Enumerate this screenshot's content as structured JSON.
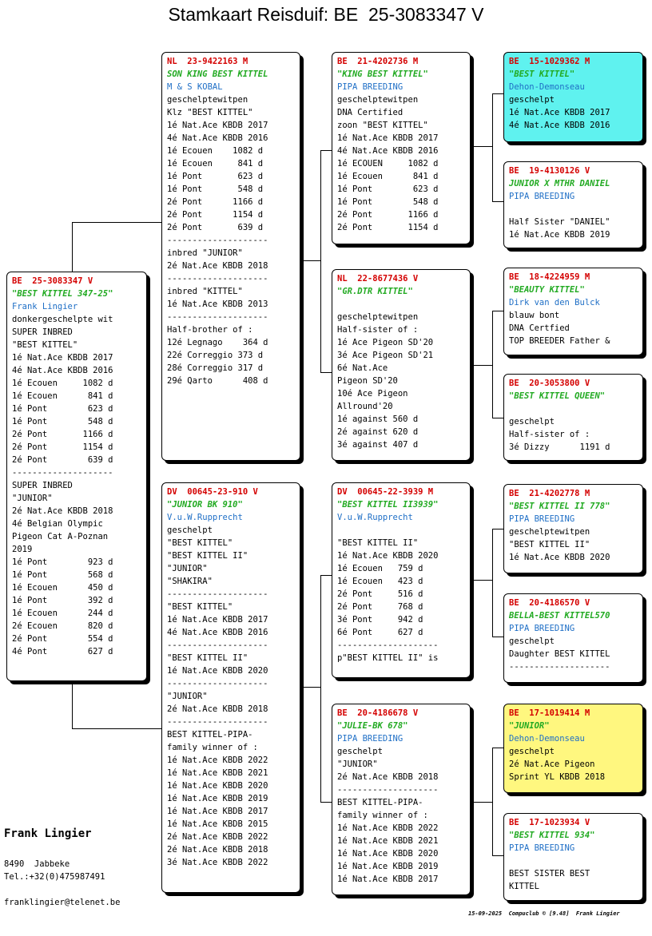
{
  "title": "Stamkaart Reisduif: BE  25-3083347 V",
  "colors": {
    "header": "#d40000",
    "name": "#22aa22",
    "breeder": "#1f6fc6",
    "highlight_cyan": "#5ff2ef",
    "highlight_yellow": "#fff77f"
  },
  "cards": {
    "subject": {
      "lines": [
        "BE  25-3083347 V",
        "\"BEST KITTEL 347-25\"",
        "Frank Lingier",
        "donkergeschelpte wit",
        "SUPER INBRED",
        "\"BEST KITTEL\"",
        "1é Nat.Ace KBDB 2017",
        "4é Nat.Ace KBDB 2016",
        "1é Ecouen     1082 d",
        "1é Ecouen      841 d",
        "1é Pont        623 d",
        "1é Pont        548 d",
        "2é Pont       1166 d",
        "2é Pont       1154 d",
        "2é Pont        639 d",
        "--------------------",
        "SUPER INBRED",
        "\"JUNIOR\"",
        "2é Nat.Ace KBDB 2018",
        "4é Belgian Olympic",
        "Pigeon Cat A-Poznan",
        "2019",
        "1é Pont        923 d",
        "1é Pont        568 d",
        "1é Ecouen      450 d",
        "1é Pont        392 d",
        "1é Ecouen      244 d",
        "2é Ecouen      820 d",
        "2é Pont        554 d",
        "4é Pont        627 d"
      ]
    },
    "sire": {
      "lines": [
        "NL  23-9422163 M",
        "SON KING BEST KITTEL",
        "M & S KOBAL",
        "geschelptewitpen",
        "Klz \"BEST KITTEL\"",
        "1é Nat.Ace KBDB 2017",
        "4é Nat.Ace KBDB 2016",
        "1é Ecouen    1082 d",
        "1é Ecouen     841 d",
        "1é Pont       623 d",
        "1é Pont       548 d",
        "2é Pont      1166 d",
        "2é Pont      1154 d",
        "2é Pont       639 d",
        "--------------------",
        "inbred \"JUNIOR\"",
        "2é Nat.Ace KBDB 2018",
        "--------------------",
        "inbred \"KITTEL\"",
        "1é Nat.Ace KBDB 2013",
        "--------------------",
        "Half-brother of :",
        "12é Legnago    364 d",
        "22é Correggio 373 d",
        "28é Correggio 317 d",
        "29é Qarto      408 d"
      ]
    },
    "dam": {
      "lines": [
        "DV  00645-23-910 V",
        "\"JUNIOR BK 910\"",
        "V.u.W.Rupprecht",
        "geschelpt",
        "\"BEST KITTEL\"",
        "\"BEST KITTEL II\"",
        "\"JUNIOR\"",
        "\"SHAKIRA\"",
        "--------------------",
        "\"BEST KITTEL\"",
        "1é Nat.Ace KBDB 2017",
        "4é Nat.Ace KBDB 2016",
        "--------------------",
        "\"BEST KITTEL II\"",
        "1é Nat.Ace KBDB 2020",
        "--------------------",
        "\"JUNIOR\"",
        "2é Nat.Ace KBDB 2018",
        "--------------------",
        "BEST KITTEL-PIPA-",
        "family winner of :",
        "1é Nat.Ace KBDB 2022",
        "1é Nat.Ace KBDB 2021",
        "1é Nat.Ace KBDB 2020",
        "1é Nat.Ace KBDB 2019",
        "1é Nat.Ace KBDB 2017",
        "1é Nat.Ace KBDB 2015",
        "2é Nat.Ace KBDB 2022",
        "2é Nat.Ace KBDB 2018",
        "3é Nat.Ace KBDB 2022"
      ]
    },
    "ss": {
      "lines": [
        "BE  21-4202736 M",
        "\"KING BEST KITTEL\"",
        "PIPA BREEDING",
        "geschelptewitpen",
        "DNA Certified",
        "zoon \"BEST KITTEL\"",
        "1é Nat.Ace KBDB 2017",
        "4é Nat.Ace KBDB 2016",
        "1é ECOUEN     1082 d",
        "1é Ecouen      841 d",
        "1é Pont        623 d",
        "1é Pont        548 d",
        "2é Pont       1166 d",
        "2é Pont       1154 d"
      ]
    },
    "sd": {
      "lines": [
        "NL  22-8677436 V",
        "\"GR.DTR KITTEL\"",
        "",
        "geschelptewitpen",
        "Half-sister of :",
        "1é Ace Pigeon SD'20",
        "3é Ace Pigeon SD'21",
        "6é Nat.Ace",
        "Pigeon SD'20",
        "10é Ace Pigeon",
        "Allround'20",
        "1é against 560 d",
        "2é against 620 d",
        "3é against 407 d"
      ]
    },
    "ds": {
      "lines": [
        "DV  00645-22-3939 M",
        "\"BEST KITTEL II3939\"",
        "V.u.W.Rupprecht",
        "",
        "\"BEST KITTEL II\"",
        "1é Nat.Ace KBDB 2020",
        "1é Ecouen   759 d",
        "1é Ecouen   423 d",
        "2é Pont     516 d",
        "2é Pont     768 d",
        "3é Pont     942 d",
        "6é Pont     627 d",
        "--------------------",
        "p\"BEST KITTEL II\" is"
      ]
    },
    "dd": {
      "lines": [
        "BE  20-4186678 V",
        "\"JULIE-BK 678\"",
        "PIPA BREEDING",
        "geschelpt",
        "\"JUNIOR\"",
        "2é Nat.Ace KBDB 2018",
        "--------------------",
        "BEST KITTEL-PIPA-",
        "family winner of :",
        "1é Nat.Ace KBDB 2022",
        "1é Nat.Ace KBDB 2021",
        "1é Nat.Ace KBDB 2020",
        "1é Nat.Ace KBDB 2019",
        "1é Nat.Ace KBDB 2017"
      ]
    },
    "sss": {
      "lines": [
        "BE  15-1029362 M",
        "\"BEST KITTEL\"",
        "Dehon-Demonseau",
        "geschelpt",
        "1é Nat.Ace KBDB 2017",
        "4é Nat.Ace KBDB 2016"
      ]
    },
    "ssd": {
      "lines": [
        "BE  19-4130126 V",
        "JUNIOR X MTHR DANIEL",
        "PIPA BREEDING",
        "",
        "Half Sister \"DANIEL\"",
        "1é Nat.Ace KBDB 2019"
      ]
    },
    "sds": {
      "lines": [
        "BE  18-4224959 M",
        "\"BEAUTY KITTEL\"",
        "Dirk van den Bulck",
        "blauw bont",
        "DNA Certfied",
        "TOP BREEDER Father &"
      ]
    },
    "sdd": {
      "lines": [
        "BE  20-3053800 V",
        "\"BEST KITTEL QUEEN\"",
        "",
        "geschelpt",
        "Half-sister of :",
        "3é Dizzy      1191 d"
      ]
    },
    "dss": {
      "lines": [
        "BE  21-4202778 M",
        "\"BEST KITTEL II 778\"",
        "PIPA BREEDING",
        "geschelptewitpen",
        "\"BEST KITTEL II\"",
        "1é Nat.Ace KBDB 2020"
      ]
    },
    "dsd": {
      "lines": [
        "BE  20-4186570 V",
        "BELLA-BEST KITTEL570",
        "PIPA BREEDING",
        "geschelpt",
        "Daughter BEST KITTEL",
        "--------------------"
      ]
    },
    "dds": {
      "lines": [
        "BE  17-1019414 M",
        "\"JUNIOR\"",
        "Dehon-Demonseau",
        "geschelpt",
        "2é Nat.Ace Pigeon",
        "Sprint YL KBDB 2018"
      ]
    },
    "ddd": {
      "lines": [
        "BE  17-1023934 V",
        "\"BEST KITTEL 934\"",
        "PIPA BREEDING",
        "",
        "BEST SISTER BEST",
        "KITTEL"
      ]
    }
  },
  "owner": {
    "name": "Frank Lingier",
    "address": "8490  Jabbeke",
    "phone": "Tel.:+32(0)475987491",
    "email": "franklingier@telenet.be"
  },
  "footer": "15-09-2025  Compuclub © [9.48]  Frank Lingier"
}
